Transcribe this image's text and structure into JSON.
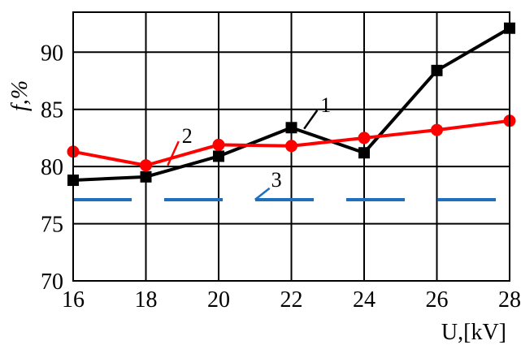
{
  "chart_data": {
    "type": "line",
    "title": "",
    "xlabel": "U,[kV]",
    "ylabel": "f,%",
    "xlim": [
      16,
      28
    ],
    "ylim": [
      70,
      93.5
    ],
    "xticks": [
      "16",
      "18",
      "20",
      "22",
      "24",
      "26",
      "28"
    ],
    "yticks": [
      "70",
      "75",
      "80",
      "85",
      "90"
    ],
    "grid": true,
    "legend": "none",
    "series": [
      {
        "name": "1",
        "color": "#000000",
        "marker": "square",
        "x": [
          16,
          18,
          20,
          22,
          24,
          26,
          28
        ],
        "y": [
          78.8,
          79.1,
          80.9,
          83.4,
          81.2,
          88.4,
          92.1
        ]
      },
      {
        "name": "2",
        "color": "#ff0000",
        "marker": "circle",
        "x": [
          16,
          18,
          20,
          22,
          24,
          26,
          28
        ],
        "y": [
          81.3,
          80.1,
          81.9,
          81.8,
          82.5,
          83.2,
          84.0
        ]
      },
      {
        "name": "3",
        "color": "#1f6fbf",
        "marker": "none",
        "dashed": true,
        "x": [
          16,
          28
        ],
        "y": [
          77.1,
          77.1
        ]
      }
    ]
  }
}
